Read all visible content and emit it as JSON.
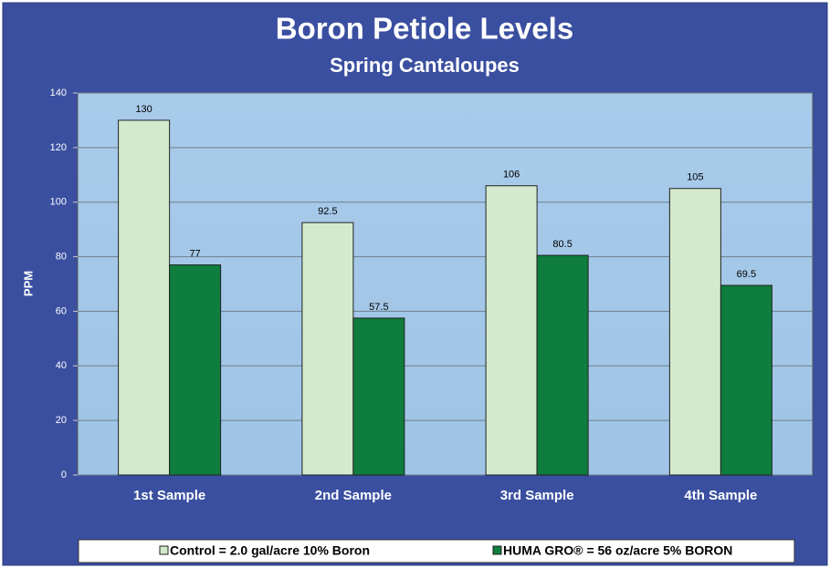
{
  "chart_data": {
    "type": "bar",
    "title": "Boron Petiole Levels",
    "subtitle": "Spring Cantaloupes",
    "y_label": "PPM",
    "categories": [
      "1st Sample",
      "2nd Sample",
      "3rd Sample",
      "4th Sample"
    ],
    "series": [
      {
        "name": "Control = 2.0 gal/acre 10% Boron",
        "color": "#d3ebcc",
        "values": [
          130,
          92.5,
          106,
          105
        ]
      },
      {
        "name": "HUMA GRO® = 56 oz/acre 5% BORON",
        "color": "#0e7d3e",
        "values": [
          77,
          57.5,
          80.5,
          69.5
        ]
      }
    ],
    "ylim": [
      0,
      140
    ],
    "yticks": [
      0,
      20,
      40,
      60,
      80,
      100,
      120,
      140
    ],
    "grid": true,
    "legend": "bottom"
  }
}
